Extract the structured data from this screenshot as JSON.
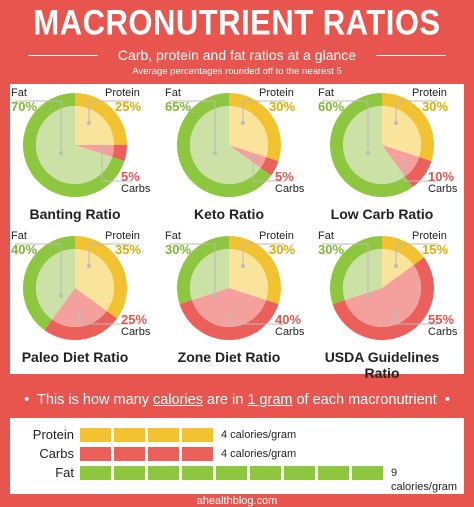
{
  "header": {
    "title": "MACRONUTRIENT RATIOS",
    "subtitle": "Carb, protein and fat ratios at a glance",
    "note": "Average percentages rounded off to the nearest 5"
  },
  "colors": {
    "background": "#e8554e",
    "fat": "#8dc63f",
    "fat_light": "#cbe1a6",
    "protein": "#f2c230",
    "protein_light": "#fae39a",
    "carbs": "#ec605b",
    "carbs_light": "#f4a09c",
    "fat_text": "#7cb832",
    "protein_text": "#e0ad00",
    "carbs_text": "#e8554e"
  },
  "chart_data": [
    {
      "type": "pie",
      "title": "Banting Ratio",
      "categories": [
        "Fat",
        "Protein",
        "Carbs"
      ],
      "values": [
        70,
        25,
        5
      ],
      "display": [
        "70%",
        "25%",
        "5%"
      ]
    },
    {
      "type": "pie",
      "title": "Keto Ratio",
      "categories": [
        "Fat",
        "Protein",
        "Carbs"
      ],
      "values": [
        65,
        30,
        5
      ],
      "display": [
        "65%",
        "30%",
        "5%"
      ]
    },
    {
      "type": "pie",
      "title": "Low Carb Ratio",
      "categories": [
        "Fat",
        "Protein",
        "Carbs"
      ],
      "values": [
        60,
        30,
        10
      ],
      "display": [
        "60%",
        "30%",
        "10%"
      ]
    },
    {
      "type": "pie",
      "title": "Paleo Diet Ratio",
      "categories": [
        "Fat",
        "Protein",
        "Carbs"
      ],
      "values": [
        40,
        35,
        25
      ],
      "display": [
        "40%",
        "35%",
        "25%"
      ]
    },
    {
      "type": "pie",
      "title": "Zone Diet Ratio",
      "categories": [
        "Fat",
        "Protein",
        "Carbs"
      ],
      "values": [
        30,
        30,
        40
      ],
      "display": [
        "30%",
        "30%",
        "40%"
      ]
    },
    {
      "type": "pie",
      "title": "USDA Guidelines Ratio",
      "categories": [
        "Fat",
        "Protein",
        "Carbs"
      ],
      "values": [
        30,
        15,
        55
      ],
      "display": [
        "30%",
        "15%",
        "55%"
      ]
    }
  ],
  "calories": {
    "heading_parts": [
      "This is how many ",
      "calories",
      " are in ",
      "1 gram",
      " of each macronutrient"
    ],
    "bullet": "•",
    "rows": [
      {
        "name": "Protein",
        "blocks": 4,
        "label": "4 calories/gram"
      },
      {
        "name": "Carbs",
        "blocks": 4,
        "label": "4 calories/gram"
      },
      {
        "name": "Fat",
        "blocks": 9,
        "label": "9 calories/gram"
      }
    ]
  },
  "footer": "ahealthblog.com"
}
